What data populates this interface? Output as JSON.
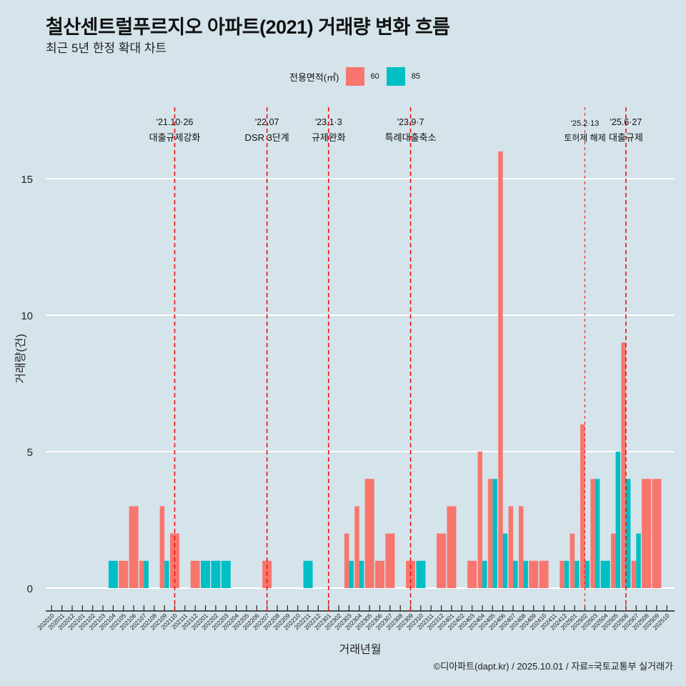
{
  "header": {
    "title": "철산센트럴푸르지오 아파트(2021) 거래량 변화 흐름",
    "subtitle": "최근 5년 한정 확대 차트"
  },
  "legend": {
    "title": "전용면적(㎡)",
    "items": [
      {
        "label": "60",
        "color": "#F8766D"
      },
      {
        "label": "85",
        "color": "#00BFC4"
      }
    ]
  },
  "caption": "©디아파트(dapt.kr) / 2025.10.01 / 자료=국토교통부 실거래가",
  "chart_data": {
    "type": "bar",
    "title": "철산센트럴푸르지오 아파트(2021) 거래량 변화 흐름",
    "subtitle": "최근 5년 한정 확대 차트",
    "xlabel": "거래년월",
    "ylabel": "거래량(건)",
    "ylim": [
      -0.8,
      17.5
    ],
    "yticks": [
      0,
      5,
      10,
      15
    ],
    "grid": "horizontal major",
    "legend_position": "top",
    "categories": [
      "202010",
      "202011",
      "202012",
      "202101",
      "202102",
      "202103",
      "202104",
      "202105",
      "202106",
      "202107",
      "202108",
      "202109",
      "202110",
      "202111",
      "202112",
      "202201",
      "202202",
      "202203",
      "202204",
      "202205",
      "202206",
      "202207",
      "202208",
      "202209",
      "202210",
      "202211",
      "202212",
      "202301",
      "202302",
      "202303",
      "202304",
      "202305",
      "202306",
      "202307",
      "202308",
      "202309",
      "202310",
      "202311",
      "202312",
      "202401",
      "202402",
      "202403",
      "202404",
      "202405",
      "202406",
      "202407",
      "202408",
      "202409",
      "202410",
      "202411",
      "202412",
      "202501",
      "202502",
      "202503",
      "202504",
      "202505",
      "202506",
      "202507",
      "202508",
      "202509",
      "202510"
    ],
    "series": [
      {
        "name": "60",
        "color": "#F8766D",
        "values": [
          0,
          0,
          0,
          0,
          0,
          0,
          0,
          1,
          3,
          1,
          0,
          3,
          2,
          0,
          1,
          0,
          0,
          0,
          0,
          0,
          0,
          1,
          0,
          0,
          0,
          0,
          0,
          0,
          0,
          2,
          3,
          4,
          1,
          2,
          0,
          1,
          0,
          0,
          2,
          3,
          0,
          1,
          5,
          4,
          16,
          3,
          3,
          1,
          1,
          0,
          1,
          2,
          6,
          4,
          0,
          2,
          9,
          1,
          4,
          4,
          0
        ]
      },
      {
        "name": "85",
        "color": "#00BFC4",
        "values": [
          0,
          0,
          0,
          0,
          0,
          0,
          1,
          0,
          0,
          1,
          0,
          1,
          0,
          0,
          0,
          1,
          1,
          1,
          0,
          0,
          0,
          0,
          0,
          0,
          0,
          1,
          0,
          0,
          0,
          1,
          1,
          0,
          0,
          0,
          0,
          0,
          1,
          0,
          0,
          0,
          0,
          0,
          1,
          4,
          2,
          1,
          1,
          0,
          0,
          0,
          1,
          1,
          1,
          4,
          1,
          5,
          4,
          2,
          0,
          0,
          0
        ]
      }
    ],
    "annotations": [
      {
        "month": "202110",
        "date": "'21.10·26",
        "label": "대출규제강화",
        "style": "bold-dash"
      },
      {
        "month": "202207",
        "date": "'22.07",
        "label": "DSR 3단계",
        "style": "bold-dash"
      },
      {
        "month": "202301",
        "date": "'23.1·3",
        "label": "규제완화",
        "style": "bold-dash"
      },
      {
        "month": "202309",
        "date": "'23.9·7",
        "label": "특례대출축소",
        "style": "bold-dash"
      },
      {
        "month": "202502",
        "date": "'25.2·13",
        "label": "토허제 해제",
        "style": "thin-dash"
      },
      {
        "month": "202506",
        "date": "'25.6·27",
        "label": "대출규제",
        "style": "bold-dash"
      }
    ]
  }
}
